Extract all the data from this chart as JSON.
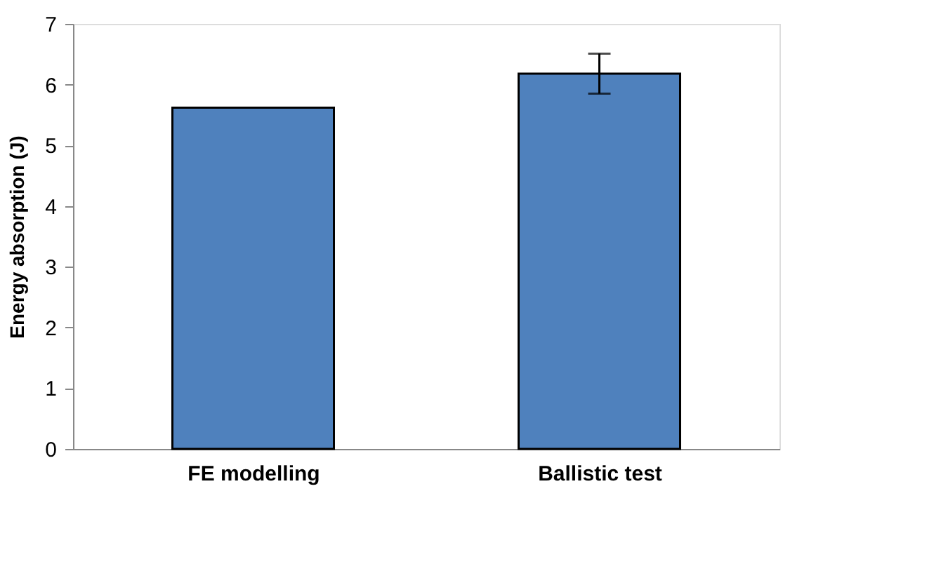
{
  "chart_data": {
    "type": "bar",
    "ylabel": "Energy absorption (J)",
    "categories": [
      "FE modelling",
      "Ballistic test"
    ],
    "values": [
      5.62,
      6.18
    ],
    "errors": [
      null,
      0.33
    ],
    "color": "#4f81bd",
    "ylim": [
      0,
      7
    ],
    "yticks": [
      0,
      1,
      2,
      3,
      4,
      5,
      6,
      7
    ],
    "grid": false
  }
}
